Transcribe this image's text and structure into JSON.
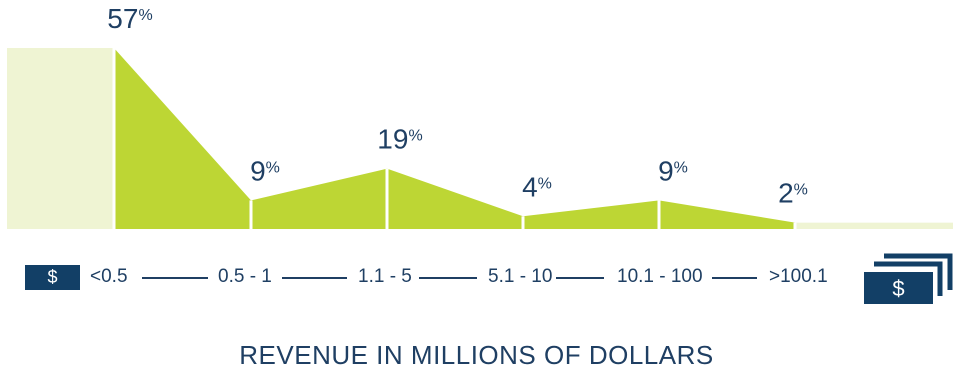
{
  "chart_data": {
    "type": "area",
    "categories": [
      "<0.5",
      "0.5 - 1",
      "1.1 - 5",
      "5.1 - 10",
      "10.1 - 100",
      ">100.1"
    ],
    "values": [
      57,
      9,
      19,
      4,
      9,
      2
    ],
    "value_suffix": "%",
    "xlabel": "REVENUE IN MILLIONS OF DOLLARS",
    "ylim": [
      0,
      57
    ],
    "grid": false,
    "colors": {
      "fill": "#bdd634",
      "fill_light": "#eff4d3",
      "text": "#1f3f63",
      "dark_box": "#123f66"
    }
  },
  "axis": {
    "low_icon": "$",
    "high_icon": "$"
  },
  "icons": {
    "low": "dollar-sign-icon",
    "high": "stacked-bills-icon"
  }
}
